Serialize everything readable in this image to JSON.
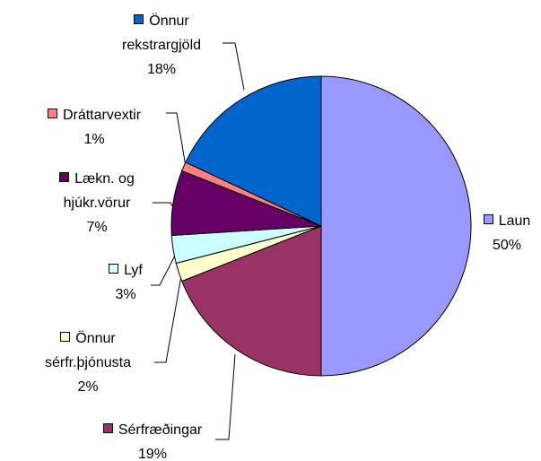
{
  "chart_data": {
    "type": "pie",
    "categories": [
      "Laun",
      "Sérfræðingar",
      "Önnur sérfr.þjónusta",
      "Lyf",
      "Lækn. og hjúkr.vörur",
      "Dráttarvextir",
      "Önnur rekstrargjöld"
    ],
    "values": [
      50,
      19,
      2,
      3,
      7,
      1,
      18
    ],
    "value_labels": [
      "50%",
      "19%",
      "2%",
      "3%",
      "7%",
      "1%",
      "18%"
    ],
    "colors": [
      "#9999ff",
      "#993366",
      "#ffffcc",
      "#ccffff",
      "#660066",
      "#ff8080",
      "#0066cc"
    ]
  }
}
